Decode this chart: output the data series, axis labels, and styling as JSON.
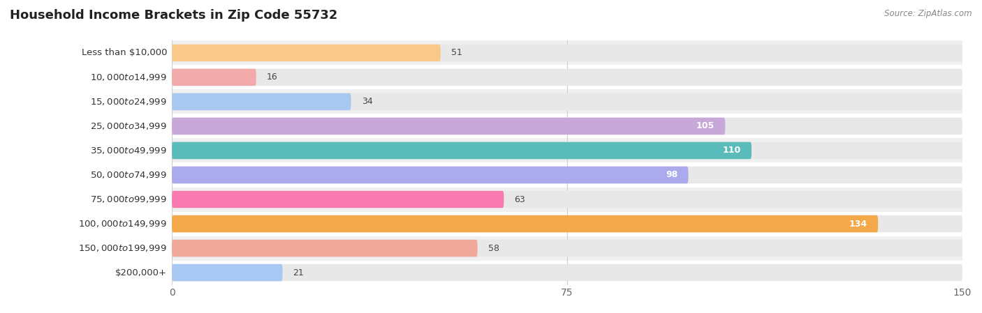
{
  "title": "Household Income Brackets in Zip Code 55732",
  "source": "Source: ZipAtlas.com",
  "categories": [
    "Less than $10,000",
    "$10,000 to $14,999",
    "$15,000 to $24,999",
    "$25,000 to $34,999",
    "$35,000 to $49,999",
    "$50,000 to $74,999",
    "$75,000 to $99,999",
    "$100,000 to $149,999",
    "$150,000 to $199,999",
    "$200,000+"
  ],
  "values": [
    51,
    16,
    34,
    105,
    110,
    98,
    63,
    134,
    58,
    21
  ],
  "colors": [
    "#F9C98A",
    "#F2AAAA",
    "#A8C8F0",
    "#C8A8D8",
    "#5ABCBA",
    "#AAAAEC",
    "#F87AAE",
    "#F5A84A",
    "#F0A898",
    "#A8C8F4"
  ],
  "xlim": [
    0,
    150
  ],
  "xticks": [
    0,
    75,
    150
  ],
  "background_color": "#ffffff",
  "row_bg_even": "#f0f0f0",
  "row_bg_odd": "#ffffff",
  "bar_track_color": "#e8e8e8",
  "title_fontsize": 13,
  "label_fontsize": 9.5,
  "value_fontsize": 9,
  "value_inside_threshold": 80
}
